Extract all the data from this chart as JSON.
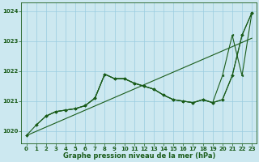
{
  "xlabel": "Graphe pression niveau de la mer (hPa)",
  "xlim": [
    -0.5,
    23.5
  ],
  "ylim": [
    1019.6,
    1024.3
  ],
  "yticks": [
    1020,
    1021,
    1022,
    1023,
    1024
  ],
  "xticks": [
    0,
    1,
    2,
    3,
    4,
    5,
    6,
    7,
    8,
    9,
    10,
    11,
    12,
    13,
    14,
    15,
    16,
    17,
    18,
    19,
    20,
    21,
    22,
    23
  ],
  "bg_color": "#cce8f0",
  "grid_color": "#99cce0",
  "line_color": "#1a5c1a",
  "line_trend": {
    "x": [
      0,
      23
    ],
    "y": [
      1019.85,
      1023.1
    ]
  },
  "line_main": {
    "x": [
      0,
      1,
      2,
      3,
      4,
      5,
      6,
      7,
      8,
      9,
      10,
      11,
      12,
      13,
      14,
      15,
      16,
      17,
      18,
      19,
      20,
      21,
      22,
      23
    ],
    "y": [
      1019.85,
      1020.2,
      1020.5,
      1020.65,
      1020.7,
      1020.75,
      1020.85,
      1021.1,
      1021.9,
      1021.75,
      1021.75,
      1021.6,
      1021.5,
      1021.4,
      1021.2,
      1021.05,
      1021.0,
      1020.95,
      1021.05,
      1020.95,
      1021.05,
      1021.85,
      1023.2,
      1023.95
    ]
  },
  "line_b1": {
    "x": [
      1,
      2,
      3,
      4,
      5,
      6,
      7,
      8,
      9,
      10,
      11,
      12,
      13,
      14,
      15,
      16,
      17,
      18,
      19,
      20,
      21,
      22,
      23
    ],
    "y": [
      1020.2,
      1020.5,
      1020.65,
      1020.7,
      1020.75,
      1020.85,
      1021.1,
      1021.9,
      1021.75,
      1021.75,
      1021.6,
      1021.5,
      1021.4,
      1021.2,
      1021.05,
      1021.0,
      1020.95,
      1021.05,
      1020.95,
      1021.05,
      1021.85,
      1023.2,
      1023.95
    ]
  },
  "line_b2": {
    "x": [
      2,
      3,
      4,
      5,
      6,
      7,
      8,
      9,
      10,
      11,
      12,
      13,
      14,
      15,
      16,
      17,
      18,
      19,
      20,
      21,
      22,
      23
    ],
    "y": [
      1020.5,
      1020.65,
      1020.7,
      1020.75,
      1020.85,
      1021.1,
      1021.9,
      1021.75,
      1021.75,
      1021.6,
      1021.5,
      1021.4,
      1021.2,
      1021.05,
      1021.0,
      1020.95,
      1021.05,
      1020.95,
      1021.85,
      1023.2,
      1021.85,
      1023.95
    ]
  }
}
